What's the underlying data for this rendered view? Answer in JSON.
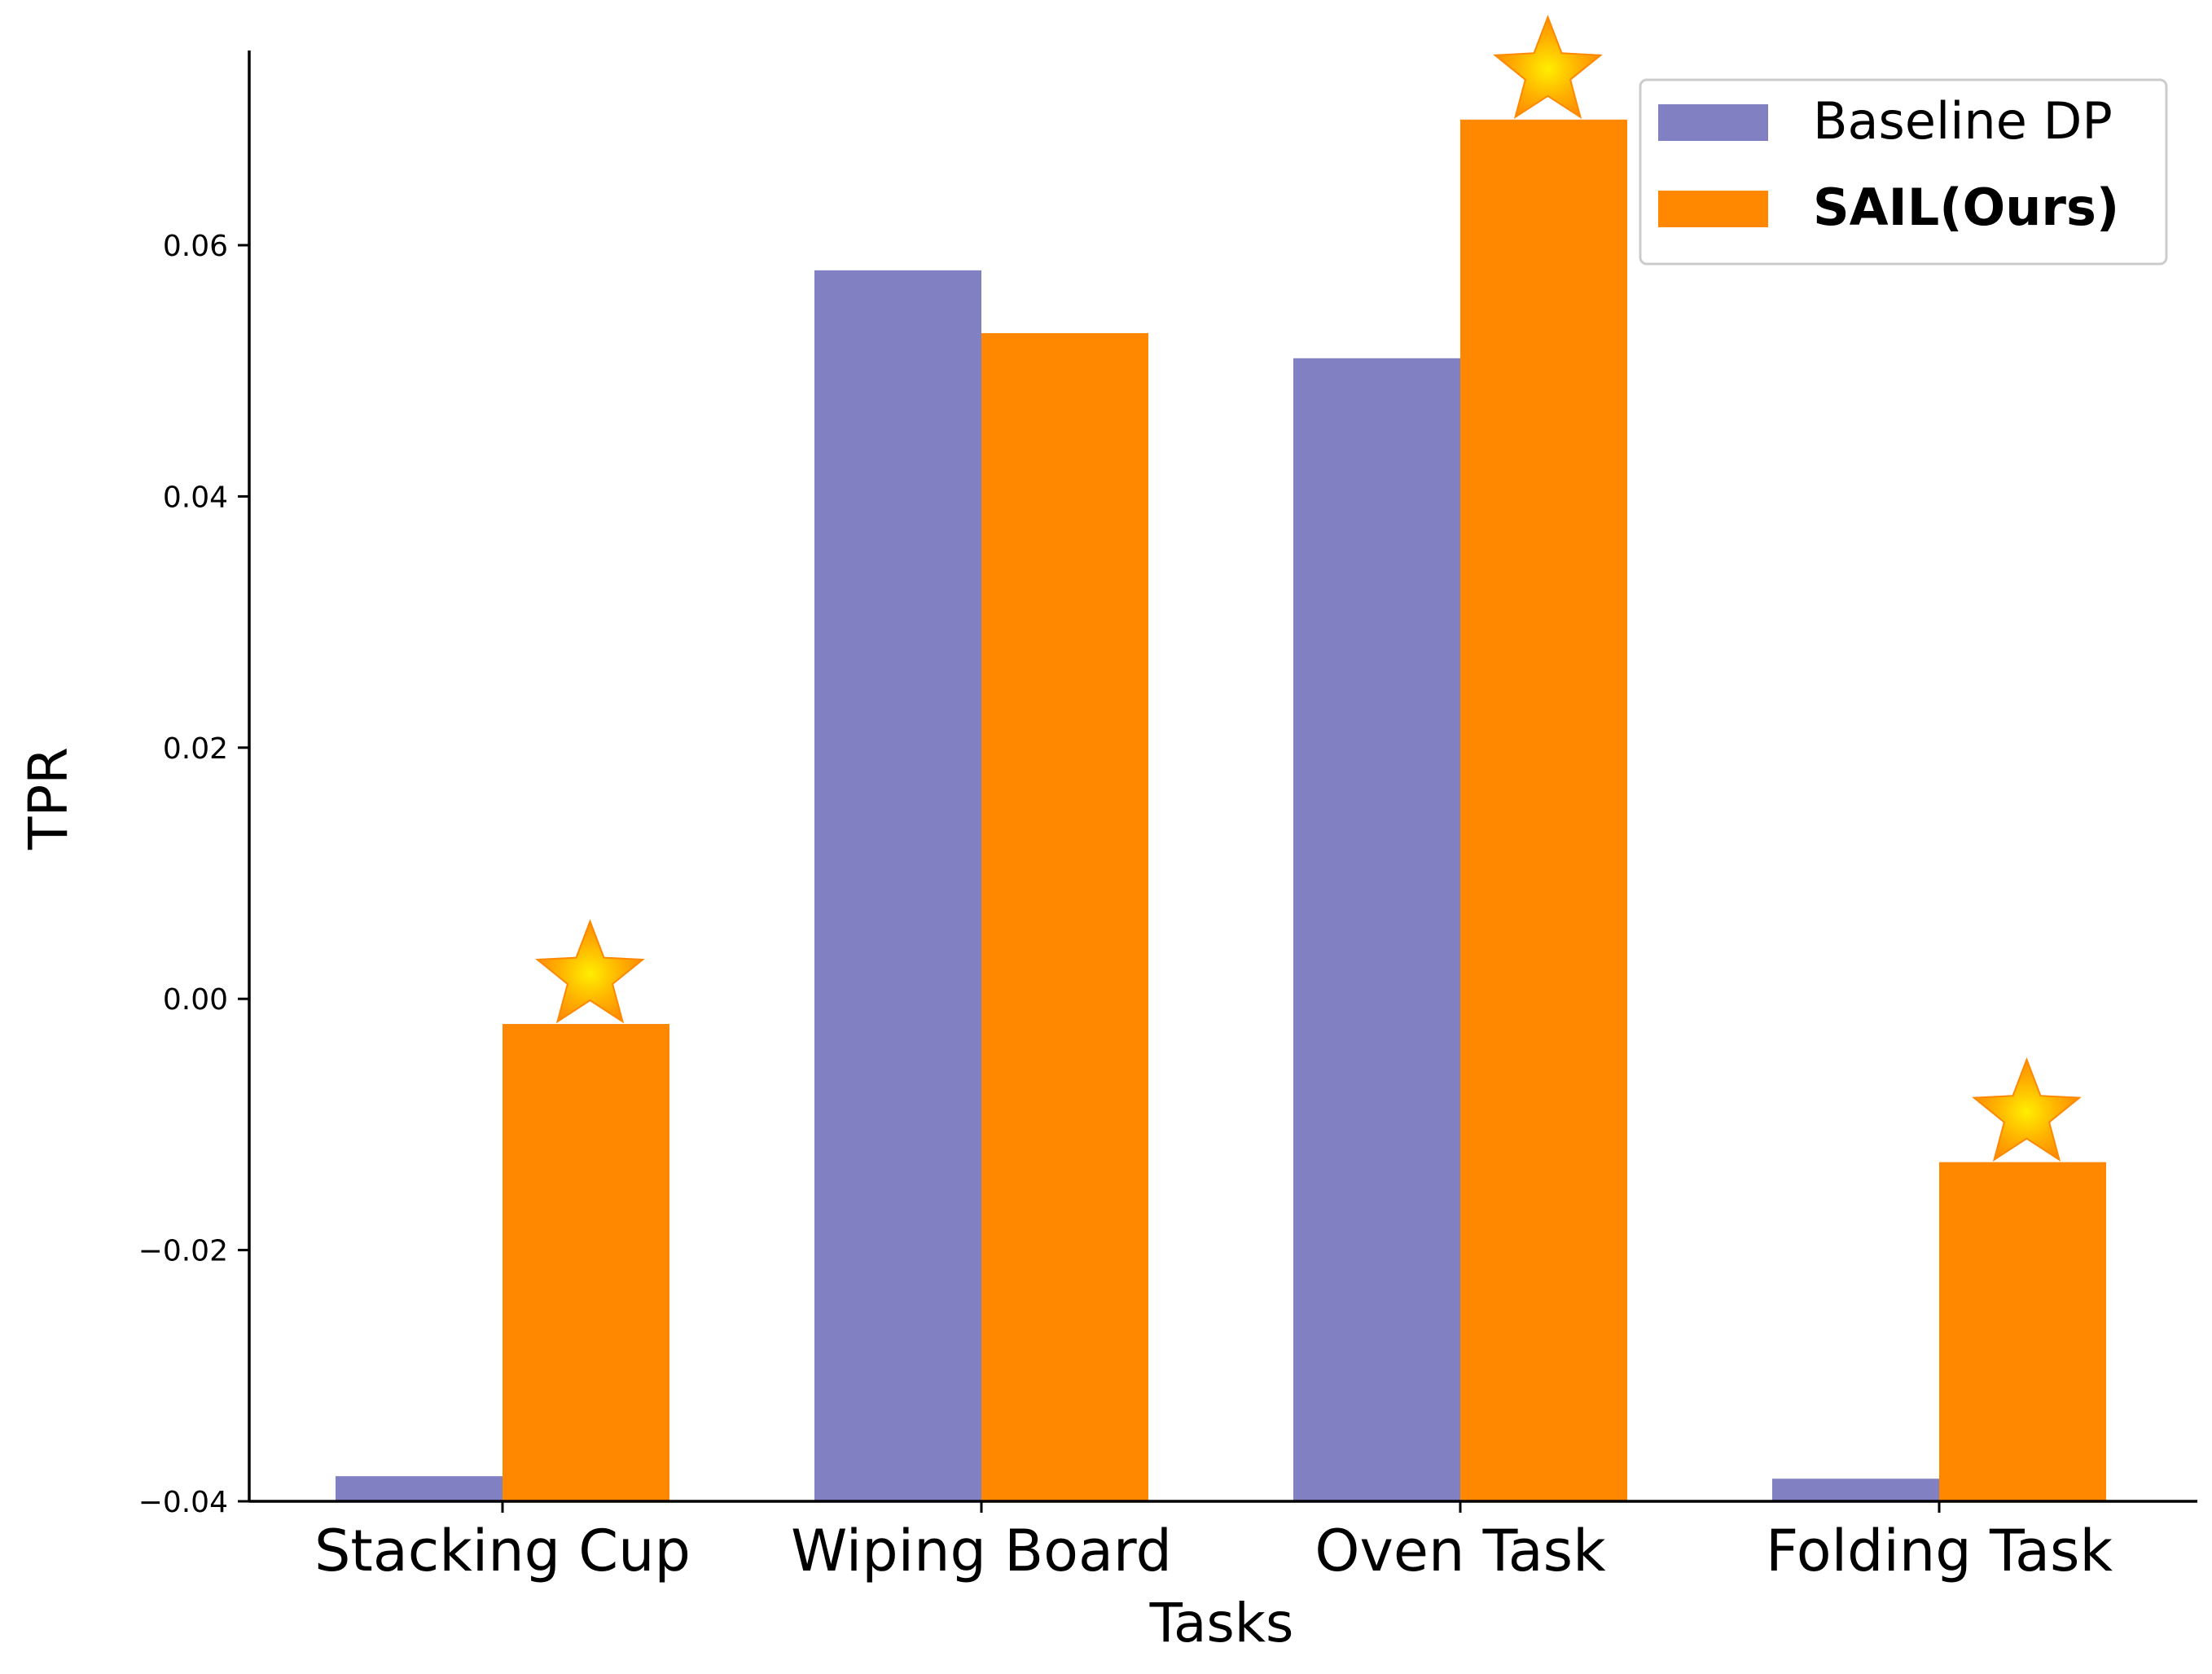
{
  "chart_data": {
    "type": "bar",
    "categories": [
      "Stacking Cup",
      "Wiping Board",
      "Oven Task",
      "Folding Task"
    ],
    "series": [
      {
        "name": "Baseline DP",
        "values": [
          -0.038,
          0.058,
          0.051,
          -0.0382
        ],
        "color": "#8080c2"
      },
      {
        "name": "SAIL(Ours)",
        "values": [
          -0.002,
          0.053,
          0.07,
          -0.013
        ],
        "color": "#ff8800"
      }
    ],
    "highlighted": [
      {
        "category": "Stacking Cup",
        "series": "SAIL(Ours)",
        "marker": "star-icon"
      },
      {
        "category": "Oven Task",
        "series": "SAIL(Ours)",
        "marker": "star-icon"
      },
      {
        "category": "Folding Task",
        "series": "SAIL(Ours)",
        "marker": "star-icon"
      }
    ],
    "xlabel": "Tasks",
    "ylabel": "TPR",
    "ylim": [
      -0.04,
      0.0755
    ],
    "yticks": [
      -0.04,
      -0.02,
      0.0,
      0.02,
      0.04,
      0.06
    ],
    "ytick_labels": [
      "−0.04",
      "−0.02",
      "0.00",
      "0.02",
      "0.04",
      "0.06"
    ],
    "legend_position": "top-right",
    "grid": false
  }
}
